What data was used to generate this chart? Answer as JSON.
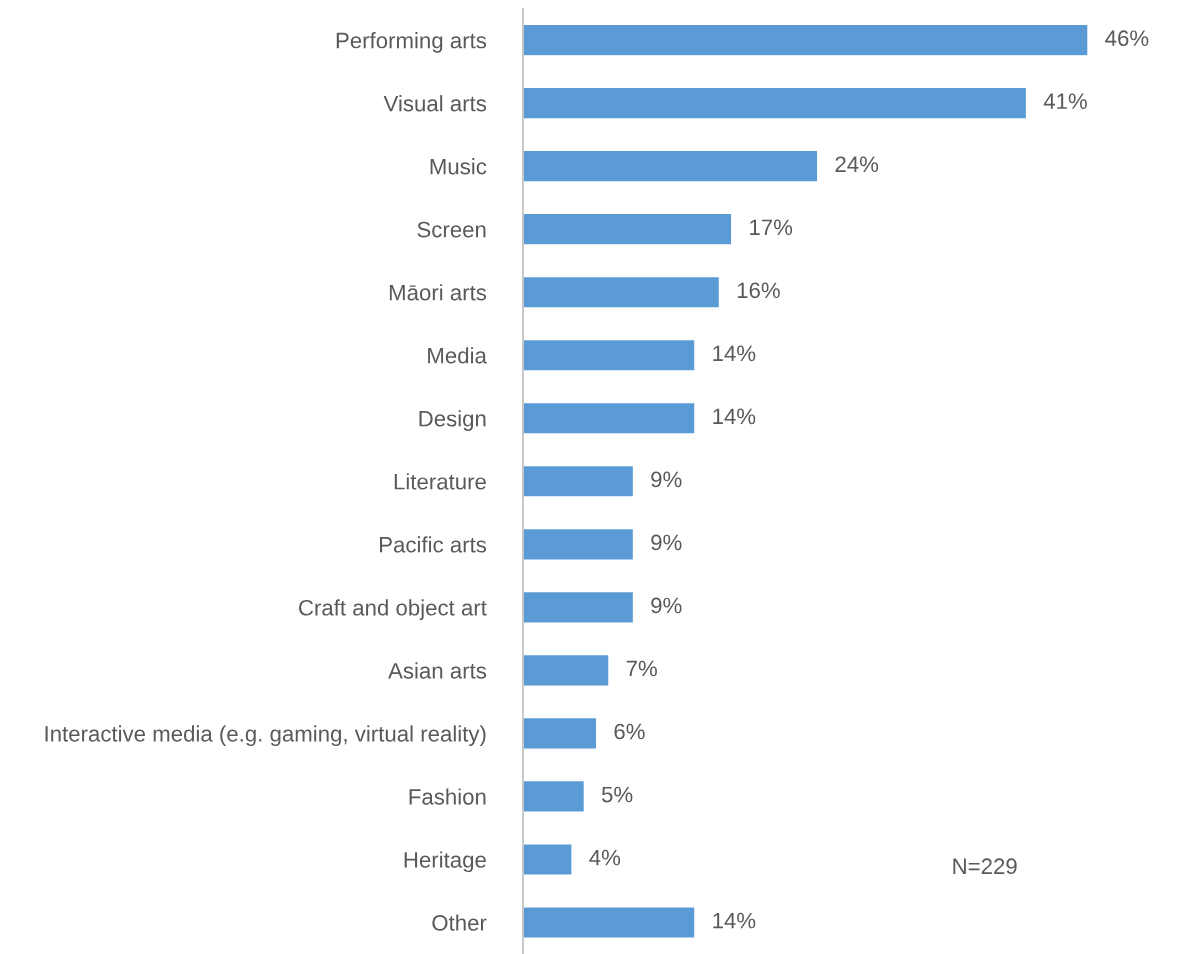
{
  "chart_data": {
    "type": "bar",
    "orientation": "horizontal",
    "categories": [
      "Performing arts",
      "Visual arts",
      "Music",
      "Screen",
      "Māori arts",
      "Media",
      "Design",
      "Literature",
      "Pacific arts",
      "Craft and object art",
      "Asian arts",
      "Interactive media (e.g. gaming, virtual reality)",
      "Fashion",
      "Heritage",
      "Other"
    ],
    "values": [
      46,
      41,
      24,
      17,
      16,
      14,
      14,
      9,
      9,
      9,
      7,
      6,
      5,
      4,
      14
    ],
    "value_labels": [
      "46%",
      "41%",
      "24%",
      "17%",
      "16%",
      "14%",
      "14%",
      "9%",
      "9%",
      "9%",
      "7%",
      "6%",
      "5%",
      "4%",
      "14%"
    ],
    "color": "#5b9bd5",
    "annotations": [
      "N=229"
    ],
    "grid": false,
    "legend": false
  }
}
